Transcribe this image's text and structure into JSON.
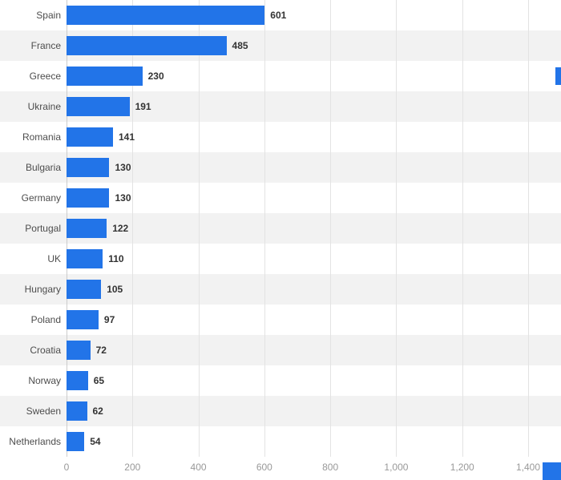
{
  "chart_data": {
    "type": "bar",
    "orientation": "horizontal",
    "title": "",
    "xlabel": "",
    "ylabel": "",
    "categories": [
      "Spain",
      "France",
      "Greece",
      "Ukraine",
      "Romania",
      "Bulgaria",
      "Germany",
      "Portugal",
      "UK",
      "Hungary",
      "Poland",
      "Croatia",
      "Norway",
      "Sweden",
      "Netherlands"
    ],
    "values": [
      601,
      485,
      230,
      191,
      141,
      130,
      130,
      122,
      110,
      105,
      97,
      72,
      65,
      62,
      54
    ],
    "value_labels": [
      "601",
      "485",
      "230",
      "191",
      "141",
      "130",
      "130",
      "122",
      "110",
      "105",
      "97",
      "72",
      "65",
      "62",
      "54"
    ],
    "xlim": [
      0,
      1400
    ],
    "x_ticks": [
      0,
      200,
      400,
      600,
      800,
      1000,
      1200,
      1400
    ],
    "x_tick_labels": [
      "0",
      "200",
      "400",
      "600",
      "800",
      "1,000",
      "1,200",
      "1,400"
    ],
    "grid": true,
    "legend": "none",
    "bar_color": "#2274e8",
    "band_colors": [
      "#ffffff",
      "#f2f2f2"
    ],
    "value_label_color": "#333333",
    "category_label_color": "#4d4d4d",
    "tick_label_color": "#999999",
    "gridline_color": "#e3e3e3",
    "accent_fragment_color": "#2274e8"
  }
}
